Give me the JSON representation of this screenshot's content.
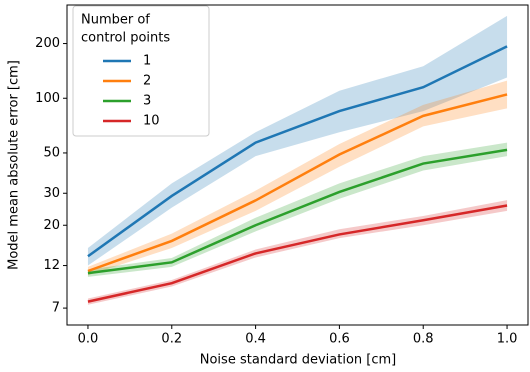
{
  "chart_data": {
    "type": "line",
    "xlabel": "Noise standard deviation [cm]",
    "ylabel": "Model mean absolute error [cm]",
    "x": [
      0.0,
      0.2,
      0.4,
      0.6,
      0.8,
      1.0
    ],
    "xlim": [
      -0.05,
      1.05
    ],
    "xticks": [
      {
        "value": 0,
        "label": "0.0"
      },
      {
        "value": 0.2,
        "label": "0.2"
      },
      {
        "value": 0.4,
        "label": "0.4"
      },
      {
        "value": 0.6,
        "label": "0.6"
      },
      {
        "value": 0.8,
        "label": "0.8"
      },
      {
        "value": 1,
        "label": "1.0"
      }
    ],
    "ylim": [
      5.65,
      326
    ],
    "yticks": [
      7,
      12,
      20,
      30,
      50,
      100,
      200
    ],
    "log_y": true,
    "legend_title": [
      "Number of",
      "control points"
    ],
    "legend": "upper left",
    "series": [
      {
        "name": "1",
        "color": "#1f77b4",
        "values": [
          13.5,
          29,
          57,
          85,
          115,
          193
        ],
        "lower": [
          12,
          25,
          48,
          65,
          85,
          130
        ],
        "upper": [
          15,
          34,
          65,
          110,
          150,
          284
        ]
      },
      {
        "name": "2",
        "color": "#ff7f0e",
        "values": [
          11.2,
          16.4,
          27.4,
          49,
          80,
          105
        ],
        "lower": [
          10.6,
          15,
          24,
          42,
          70,
          88
        ],
        "upper": [
          11.8,
          18,
          31,
          56,
          92,
          125
        ]
      },
      {
        "name": "3",
        "color": "#2ca02c",
        "values": [
          10.9,
          12.5,
          20,
          30.5,
          43.7,
          52
        ],
        "lower": [
          10.4,
          11.8,
          18.5,
          28,
          40,
          48
        ],
        "upper": [
          11.4,
          13.2,
          22,
          34,
          48,
          57
        ]
      },
      {
        "name": "10",
        "color": "#d62728",
        "values": [
          7.6,
          9.6,
          14,
          17.8,
          21.3,
          25.7
        ],
        "lower": [
          7.3,
          9.2,
          13.3,
          17,
          20,
          24
        ],
        "upper": [
          7.9,
          10,
          14.7,
          19,
          22.5,
          27.5
        ]
      }
    ]
  }
}
